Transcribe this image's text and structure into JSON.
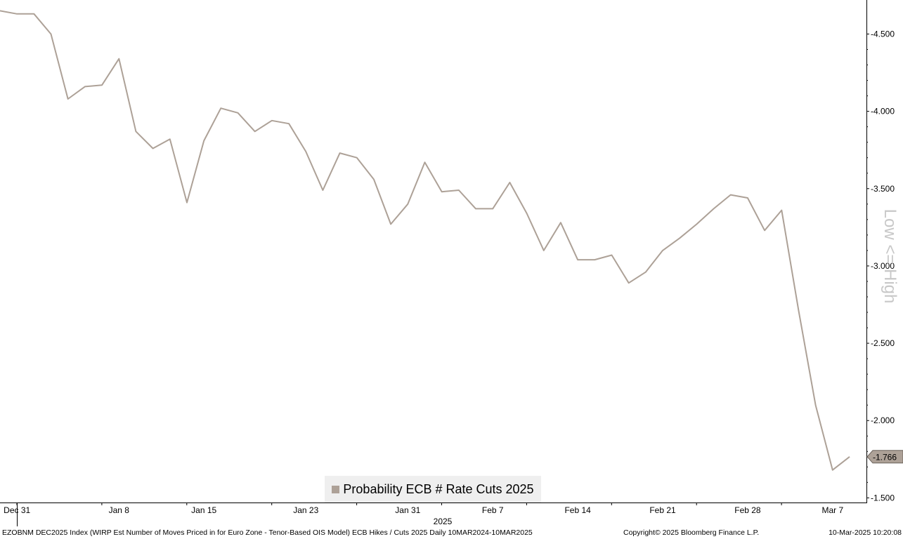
{
  "chart_data": {
    "type": "line",
    "series": [
      {
        "name": "Probability ECB # Rate Cuts 2025",
        "color": "#ada197",
        "x": [
          "2024-12-30",
          "2024-12-31",
          "2025-01-01",
          "2025-01-02",
          "2025-01-03",
          "2025-01-06",
          "2025-01-07",
          "2025-01-08",
          "2025-01-09",
          "2025-01-10",
          "2025-01-13",
          "2025-01-14",
          "2025-01-15",
          "2025-01-16",
          "2025-01-17",
          "2025-01-20",
          "2025-01-21",
          "2025-01-22",
          "2025-01-23",
          "2025-01-24",
          "2025-01-27",
          "2025-01-28",
          "2025-01-29",
          "2025-01-30",
          "2025-01-31",
          "2025-02-03",
          "2025-02-04",
          "2025-02-05",
          "2025-02-06",
          "2025-02-07",
          "2025-02-10",
          "2025-02-11",
          "2025-02-12",
          "2025-02-13",
          "2025-02-14",
          "2025-02-17",
          "2025-02-18",
          "2025-02-19",
          "2025-02-20",
          "2025-02-21",
          "2025-02-24",
          "2025-02-25",
          "2025-02-26",
          "2025-02-27",
          "2025-02-28",
          "2025-03-03",
          "2025-03-04",
          "2025-03-05",
          "2025-03-06",
          "2025-03-07",
          "2025-03-10"
        ],
        "y": [
          -4.65,
          -4.63,
          -4.63,
          -4.5,
          -4.08,
          -4.16,
          -4.17,
          -4.34,
          -3.87,
          -3.76,
          -3.82,
          -3.41,
          -3.81,
          -4.02,
          -3.99,
          -3.87,
          -3.94,
          -3.92,
          -3.74,
          -3.49,
          -3.73,
          -3.7,
          -3.56,
          -3.27,
          -3.4,
          -3.67,
          -3.48,
          -3.49,
          -3.37,
          -3.37,
          -3.54,
          -3.34,
          -3.1,
          -3.28,
          -3.04,
          -3.04,
          -3.07,
          -2.89,
          -2.96,
          -3.1,
          -3.18,
          -3.27,
          -3.37,
          -3.46,
          -3.44,
          -3.23,
          -3.36,
          -2.71,
          -2.1,
          -1.68,
          -1.766
        ]
      }
    ],
    "x_tick_labels": [
      "Dec 31",
      "Jan 8",
      "Jan 15",
      "Jan 23",
      "Jan 31",
      "Feb 7",
      "Feb 14",
      "Feb 21",
      "Feb 28",
      "Mar 7"
    ],
    "x_tick_dates": [
      "2024-12-31",
      "2025-01-08",
      "2025-01-15",
      "2025-01-23",
      "2025-01-31",
      "2025-02-07",
      "2025-02-14",
      "2025-02-21",
      "2025-02-28",
      "2025-03-07"
    ],
    "x_year_label": "2025",
    "y_ticks": [
      -4.5,
      -4.0,
      -3.5,
      -3.0,
      -2.5,
      -2.0,
      -1.5
    ],
    "y_tick_labels": [
      "-4.500",
      "-4.000",
      "-3.500",
      "-3.000",
      "-2.500",
      "-2.000",
      "-1.500"
    ],
    "ylim": [
      -4.72,
      -1.47
    ],
    "y_axis_position": "right",
    "y_inverted": true,
    "last_value_label": "-1.766",
    "legend": {
      "label": "Probability ECB # Rate Cuts 2025",
      "position": "bottom-center"
    },
    "watermark": "Low <= High",
    "grid": false
  },
  "footer": {
    "description": "EZOBNM DEC2025 Index (WIRP Est Number of Moves Priced in for Euro Zone - Tenor-Based OIS Model) ECB Hikes / Cuts 2025  Daily 10MAR2024-10MAR2025",
    "copyright": "Copyright© 2025 Bloomberg Finance L.P.",
    "timestamp": "10-Mar-2025 10:20:08"
  },
  "colors": {
    "line": "#ada197",
    "tag_fill": "#ada197",
    "legend_bg": "#efefef",
    "watermark": "#c8c8c8"
  }
}
